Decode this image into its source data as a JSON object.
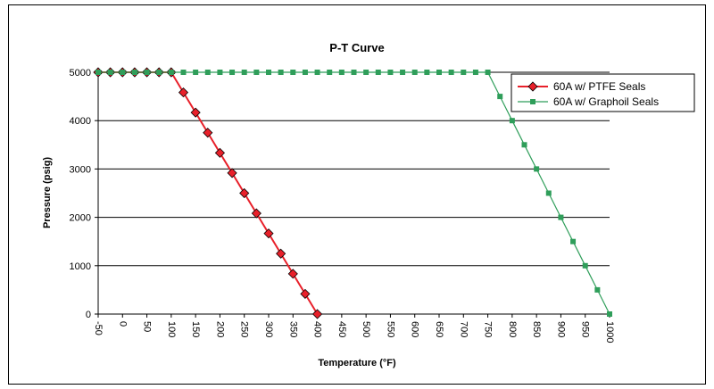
{
  "chart_data": {
    "type": "line",
    "title": "P-T Curve",
    "xlabel": "Temperature (°F)",
    "ylabel": "Pressure (psig)",
    "xlim": [
      -50,
      1000
    ],
    "ylim": [
      0,
      5000
    ],
    "x_ticks": [
      "-50",
      "0",
      "50",
      "100",
      "150",
      "200",
      "250",
      "300",
      "350",
      "400",
      "450",
      "500",
      "550",
      "600",
      "650",
      "700",
      "750",
      "800",
      "850",
      "900",
      "950",
      "1000"
    ],
    "y_ticks": [
      "0",
      "1000",
      "2000",
      "3000",
      "4000",
      "5000"
    ],
    "grid": "horizontal",
    "legend_position": "top-right",
    "series": [
      {
        "name": "60A w/ PTFE Seals",
        "color": "#e8202a",
        "marker": "diamond",
        "x": [
          -50,
          -25,
          0,
          25,
          50,
          75,
          100,
          125,
          150,
          175,
          200,
          225,
          250,
          275,
          300,
          325,
          350,
          375,
          400
        ],
        "y": [
          5000,
          5000,
          5000,
          5000,
          5000,
          5000,
          5000,
          4583,
          4167,
          3750,
          3333,
          2917,
          2500,
          2083,
          1667,
          1250,
          833,
          417,
          0
        ]
      },
      {
        "name": "60A w/ Graphoil Seals",
        "color": "#2f9e5a",
        "marker": "square",
        "x": [
          -50,
          -25,
          0,
          25,
          50,
          75,
          100,
          125,
          150,
          175,
          200,
          225,
          250,
          275,
          300,
          325,
          350,
          375,
          400,
          425,
          450,
          475,
          500,
          525,
          550,
          575,
          600,
          625,
          650,
          675,
          700,
          725,
          750,
          775,
          800,
          825,
          850,
          875,
          900,
          925,
          950,
          975,
          1000
        ],
        "y": [
          5000,
          5000,
          5000,
          5000,
          5000,
          5000,
          5000,
          5000,
          5000,
          5000,
          5000,
          5000,
          5000,
          5000,
          5000,
          5000,
          5000,
          5000,
          5000,
          5000,
          5000,
          5000,
          5000,
          5000,
          5000,
          5000,
          5000,
          5000,
          5000,
          5000,
          5000,
          5000,
          5000,
          4500,
          4000,
          3500,
          3000,
          2500,
          2000,
          1500,
          1000,
          500,
          0
        ]
      }
    ]
  }
}
